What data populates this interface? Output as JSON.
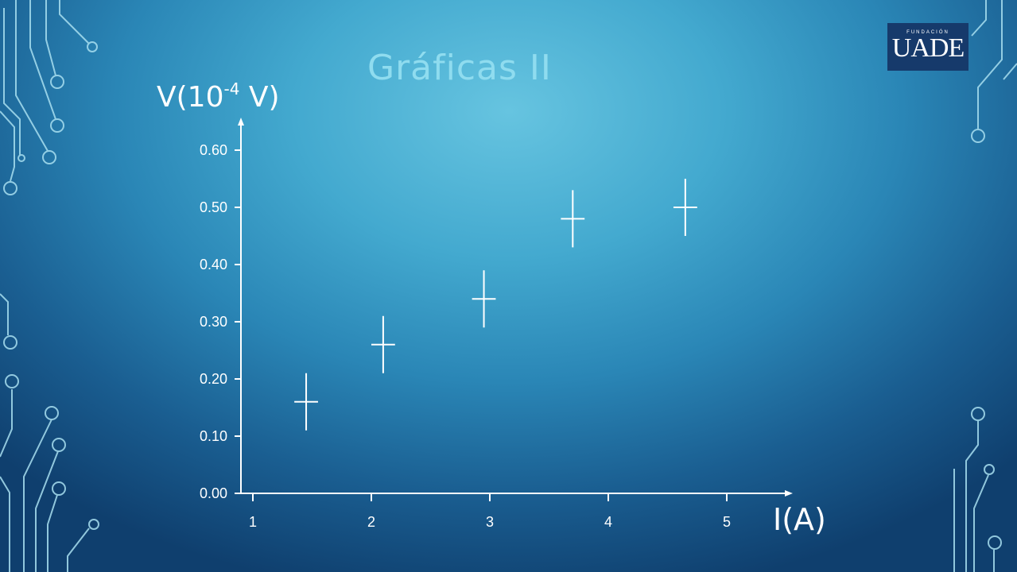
{
  "slide": {
    "title": "Gráficas II"
  },
  "logo": {
    "top_text": "FUNDACIÓN",
    "main_text": "UADE"
  },
  "colors": {
    "title": "#8fdcef",
    "axis": "#ffffff",
    "marks": "#ffffff",
    "logo_bg": "#163a6b",
    "circuit": "#a8dff0"
  },
  "chart_data": {
    "type": "scatter",
    "ylabel_base": "V(10",
    "ylabel_exp": "-4",
    "ylabel_unit": " V)",
    "xlabel": "I(A)",
    "x_ticks": [
      "1",
      "2",
      "3",
      "4",
      "5"
    ],
    "y_ticks": [
      "0.00",
      "0.10",
      "0.20",
      "0.30",
      "0.40",
      "0.50",
      "0.60"
    ],
    "xlim": [
      1,
      5
    ],
    "ylim": [
      0,
      0.6
    ],
    "points": [
      {
        "x": 1.45,
        "y": 0.16,
        "y_err": 0.05,
        "x_err": 0.1
      },
      {
        "x": 2.1,
        "y": 0.26,
        "y_err": 0.05,
        "x_err": 0.1
      },
      {
        "x": 2.95,
        "y": 0.34,
        "y_err": 0.05,
        "x_err": 0.1
      },
      {
        "x": 3.7,
        "y": 0.48,
        "y_err": 0.05,
        "x_err": 0.1
      },
      {
        "x": 4.65,
        "y": 0.5,
        "y_err": 0.05,
        "x_err": 0.1
      }
    ]
  }
}
